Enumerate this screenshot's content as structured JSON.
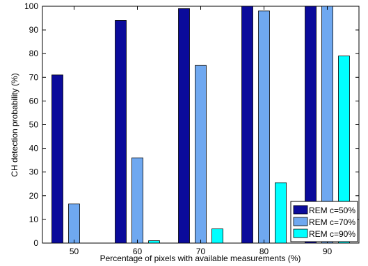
{
  "chart_data": {
    "type": "bar",
    "categories": [
      "50",
      "60",
      "70",
      "80",
      "90"
    ],
    "series": [
      {
        "name": "REM c=50%",
        "values": [
          71,
          94,
          99,
          100,
          100
        ],
        "color": "#0b0b9b"
      },
      {
        "name": "REM c=70%",
        "values": [
          16.5,
          36,
          75,
          98,
          100
        ],
        "color": "#6fa8f0"
      },
      {
        "name": "REM c=90%",
        "values": [
          0,
          1,
          6,
          25.5,
          79
        ],
        "color": "#00ffff"
      }
    ],
    "xlabel": "Percentage of pixels with available measurements (%)",
    "ylabel": "CH detection probability (%)",
    "ylim": [
      0,
      100
    ],
    "yticks": [
      0,
      10,
      20,
      30,
      40,
      50,
      60,
      70,
      80,
      90,
      100
    ],
    "grid": false,
    "legend_position": "bottom-right"
  }
}
